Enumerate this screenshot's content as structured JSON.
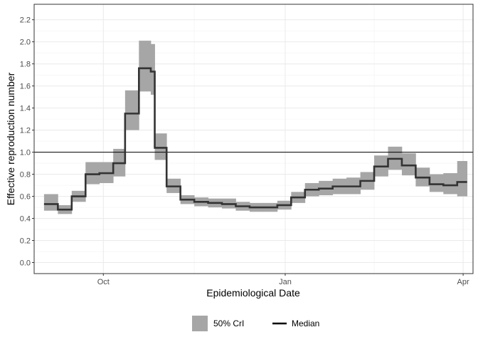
{
  "chart_data": {
    "type": "line",
    "xlabel": "Epidemiological Date",
    "ylabel": "Effective reproduction number",
    "x_range": [
      "2020-08-27",
      "2021-04-06"
    ],
    "ylim": [
      -0.1,
      2.34
    ],
    "y_ticks": [
      0.0,
      0.2,
      0.4,
      0.6,
      0.8,
      1.0,
      1.2,
      1.4,
      1.6,
      1.8,
      2.0,
      2.2
    ],
    "x_ticks": [
      {
        "date": "2020-10-01",
        "label": "Oct"
      },
      {
        "date": "2021-01-01",
        "label": "Jan"
      },
      {
        "date": "2021-04-01",
        "label": "Apr"
      }
    ],
    "x_minor_ticks": [
      "2020-08-16",
      "2020-11-16",
      "2021-02-15"
    ],
    "grid": true,
    "reference_line": {
      "y": 1.0,
      "color": "#000000"
    },
    "legend": {
      "position": "bottom"
    },
    "series": [
      {
        "name": "Median",
        "kind": "line",
        "color": "#333333",
        "ci_name": "50% CrI",
        "ci_color": "#a6a6a6",
        "points": [
          {
            "x": "2020-09-01",
            "y": 0.53,
            "lo": 0.47,
            "hi": 0.62
          },
          {
            "x": "2020-09-08",
            "y": 0.48,
            "lo": 0.44,
            "hi": 0.52
          },
          {
            "x": "2020-09-15",
            "y": 0.6,
            "lo": 0.55,
            "hi": 0.65
          },
          {
            "x": "2020-09-22",
            "y": 0.8,
            "lo": 0.71,
            "hi": 0.91
          },
          {
            "x": "2020-09-29",
            "y": 0.81,
            "lo": 0.72,
            "hi": 0.91
          },
          {
            "x": "2020-10-06",
            "y": 0.9,
            "lo": 0.78,
            "hi": 1.03
          },
          {
            "x": "2020-10-12",
            "y": 1.35,
            "lo": 1.2,
            "hi": 1.56
          },
          {
            "x": "2020-10-19",
            "y": 1.76,
            "lo": 1.55,
            "hi": 2.01
          },
          {
            "x": "2020-10-25",
            "y": 1.73,
            "lo": 1.52,
            "hi": 1.98
          },
          {
            "x": "2020-10-27",
            "y": 1.04,
            "lo": 0.93,
            "hi": 1.17
          },
          {
            "x": "2020-11-02",
            "y": 0.69,
            "lo": 0.63,
            "hi": 0.76
          },
          {
            "x": "2020-11-09",
            "y": 0.57,
            "lo": 0.53,
            "hi": 0.61
          },
          {
            "x": "2020-11-16",
            "y": 0.55,
            "lo": 0.51,
            "hi": 0.59
          },
          {
            "x": "2020-11-23",
            "y": 0.54,
            "lo": 0.5,
            "hi": 0.58
          },
          {
            "x": "2020-11-30",
            "y": 0.53,
            "lo": 0.49,
            "hi": 0.58
          },
          {
            "x": "2020-12-07",
            "y": 0.51,
            "lo": 0.47,
            "hi": 0.55
          },
          {
            "x": "2020-12-14",
            "y": 0.5,
            "lo": 0.46,
            "hi": 0.54
          },
          {
            "x": "2020-12-21",
            "y": 0.5,
            "lo": 0.46,
            "hi": 0.54
          },
          {
            "x": "2020-12-28",
            "y": 0.52,
            "lo": 0.48,
            "hi": 0.56
          },
          {
            "x": "2021-01-04",
            "y": 0.59,
            "lo": 0.54,
            "hi": 0.64
          },
          {
            "x": "2021-01-11",
            "y": 0.66,
            "lo": 0.6,
            "hi": 0.72
          },
          {
            "x": "2021-01-18",
            "y": 0.67,
            "lo": 0.61,
            "hi": 0.74
          },
          {
            "x": "2021-01-25",
            "y": 0.69,
            "lo": 0.62,
            "hi": 0.76
          },
          {
            "x": "2021-02-01",
            "y": 0.69,
            "lo": 0.62,
            "hi": 0.77
          },
          {
            "x": "2021-02-08",
            "y": 0.74,
            "lo": 0.66,
            "hi": 0.82
          },
          {
            "x": "2021-02-15",
            "y": 0.87,
            "lo": 0.78,
            "hi": 0.97
          },
          {
            "x": "2021-02-22",
            "y": 0.94,
            "lo": 0.84,
            "hi": 1.05
          },
          {
            "x": "2021-03-01",
            "y": 0.88,
            "lo": 0.79,
            "hi": 0.99
          },
          {
            "x": "2021-03-08",
            "y": 0.77,
            "lo": 0.69,
            "hi": 0.86
          },
          {
            "x": "2021-03-15",
            "y": 0.71,
            "lo": 0.64,
            "hi": 0.8
          },
          {
            "x": "2021-03-22",
            "y": 0.7,
            "lo": 0.62,
            "hi": 0.81
          },
          {
            "x": "2021-03-29",
            "y": 0.73,
            "lo": 0.6,
            "hi": 0.92
          },
          {
            "x": "2021-04-03",
            "y": 0.73,
            "lo": 0.57,
            "hi": 0.97
          }
        ]
      }
    ]
  }
}
